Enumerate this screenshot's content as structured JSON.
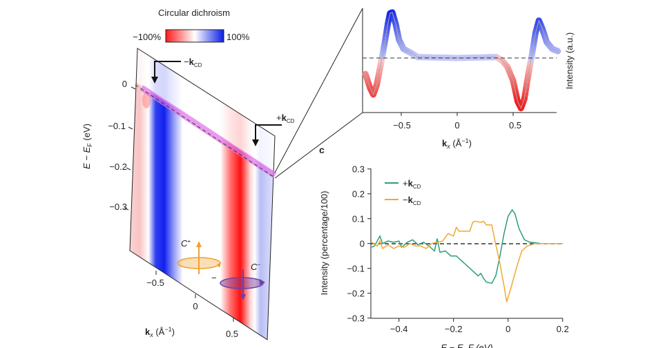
{
  "colorbar": {
    "title": "Circular dichroism",
    "min_label": "−100%",
    "max_label": "100%",
    "colors": [
      "#ff1a1a",
      "#ffffff",
      "#0a1ee6"
    ]
  },
  "panel_c_letter": "c",
  "chart_data": [
    {
      "type": "heatmap",
      "ylabel_main": "E − E",
      "ylabel_sub": "F",
      "ylabel_unit": " (eV)",
      "yticks": [
        "0",
        "−0.1",
        "−0.2",
        "−0.3"
      ],
      "xlabel_main": "k",
      "xlabel_sub": "x",
      "xlabel_unit": " (Å",
      "xlabel_exp": "−1",
      "xlabel_close": ")",
      "xticks": [
        "−0.5",
        "0",
        "0.5"
      ],
      "annotations": {
        "minus_k": {
          "sign": "−",
          "k": "k",
          "sub": "CD"
        },
        "plus_k": {
          "sign": "+",
          "k": "k",
          "sub": "CD"
        },
        "c_plus": {
          "c": "C",
          "sup": "+"
        },
        "c_minus": {
          "c": "C",
          "sup": "−"
        },
        "minus_mark": "−"
      },
      "colors": {
        "band_highlight": "#e070e8",
        "c_plus": "#f0a030",
        "c_minus": "#7040a0"
      }
    },
    {
      "type": "line",
      "ylabel": "Intensity (a.u.)",
      "xlabel_main": "k",
      "xlabel_sub": "x",
      "xlabel_unit": " (Å",
      "xlabel_exp": "−1",
      "xlabel_close": ")",
      "xticks": [
        "−0.5",
        "0",
        "0.5"
      ],
      "xlim": [
        -0.85,
        0.9
      ],
      "points": [
        [
          -0.9,
          -0.15
        ],
        [
          -0.82,
          -0.35
        ],
        [
          -0.78,
          -0.65
        ],
        [
          -0.75,
          -0.8
        ],
        [
          -0.72,
          -0.6
        ],
        [
          -0.68,
          -0.1
        ],
        [
          -0.65,
          0.3
        ],
        [
          -0.62,
          0.75
        ],
        [
          -0.6,
          0.98
        ],
        [
          -0.58,
          1.0
        ],
        [
          -0.55,
          0.75
        ],
        [
          -0.52,
          0.4
        ],
        [
          -0.48,
          0.2
        ],
        [
          -0.42,
          0.12
        ],
        [
          -0.35,
          0.02
        ],
        [
          0,
          0
        ],
        [
          0.35,
          0.02
        ],
        [
          0.4,
          -0.05
        ],
        [
          0.45,
          -0.2
        ],
        [
          0.5,
          -0.5
        ],
        [
          0.54,
          -0.95
        ],
        [
          0.57,
          -1.1
        ],
        [
          0.6,
          -0.9
        ],
        [
          0.64,
          -0.3
        ],
        [
          0.67,
          0.1
        ],
        [
          0.7,
          0.55
        ],
        [
          0.73,
          0.82
        ],
        [
          0.76,
          0.65
        ],
        [
          0.8,
          0.35
        ],
        [
          0.85,
          0.2
        ],
        [
          0.9,
          0.15
        ]
      ],
      "reference_line": 0
    },
    {
      "type": "line",
      "ylabel": "Intensity (percentage/100)",
      "xlabel": "E − E_F (eV)",
      "xlim": [
        -0.5,
        0.2
      ],
      "ylim": [
        -0.3,
        0.3
      ],
      "xticks": [
        "−0.4",
        "−0.2",
        "0",
        "0.2"
      ],
      "yticks": [
        "0.3",
        "0.2",
        "0.1",
        "0",
        "−0.1",
        "−0.2",
        "−0.3"
      ],
      "legend_position": "top-left",
      "series": [
        {
          "name": "+k_CD",
          "sign": "+",
          "k": "k",
          "sub": "CD",
          "color": "#2a9d78",
          "points": [
            [
              -0.5,
              -0.015
            ],
            [
              -0.49,
              -0.01
            ],
            [
              -0.47,
              0.03
            ],
            [
              -0.46,
              0
            ],
            [
              -0.44,
              0.01
            ],
            [
              -0.42,
              0.005
            ],
            [
              -0.4,
              0.01
            ],
            [
              -0.39,
              -0.015
            ],
            [
              -0.37,
              0.005
            ],
            [
              -0.35,
              0.015
            ],
            [
              -0.33,
              -0.005
            ],
            [
              -0.31,
              0.005
            ],
            [
              -0.29,
              -0.01
            ],
            [
              -0.27,
              -0.03
            ],
            [
              -0.26,
              0.02
            ],
            [
              -0.25,
              -0.035
            ],
            [
              -0.23,
              -0.03
            ],
            [
              -0.21,
              -0.05
            ],
            [
              -0.19,
              -0.05
            ],
            [
              -0.17,
              -0.07
            ],
            [
              -0.15,
              -0.09
            ],
            [
              -0.13,
              -0.11
            ],
            [
              -0.11,
              -0.13
            ],
            [
              -0.1,
              -0.12
            ],
            [
              -0.09,
              -0.14
            ],
            [
              -0.08,
              -0.155
            ],
            [
              -0.06,
              -0.16
            ],
            [
              -0.045,
              -0.13
            ],
            [
              -0.03,
              -0.05
            ],
            [
              -0.015,
              0.04
            ],
            [
              0,
              0.11
            ],
            [
              0.015,
              0.135
            ],
            [
              0.025,
              0.12
            ],
            [
              0.04,
              0.06
            ],
            [
              0.06,
              0.015
            ],
            [
              0.08,
              0.005
            ],
            [
              0.1,
              0.003
            ],
            [
              0.12,
              0
            ],
            [
              0.2,
              0
            ]
          ]
        },
        {
          "name": "−k_CD",
          "sign": "−",
          "k": "k",
          "sub": "CD",
          "color": "#f0a830",
          "points": [
            [
              -0.5,
              0.005
            ],
            [
              -0.48,
              -0.01
            ],
            [
              -0.47,
              0.01
            ],
            [
              -0.46,
              -0.02
            ],
            [
              -0.44,
              -0.005
            ],
            [
              -0.42,
              -0.02
            ],
            [
              -0.4,
              -0.01
            ],
            [
              -0.38,
              -0.015
            ],
            [
              -0.36,
              0
            ],
            [
              -0.34,
              -0.01
            ],
            [
              -0.32,
              -0.01
            ],
            [
              -0.3,
              -0.02
            ],
            [
              -0.28,
              0
            ],
            [
              -0.26,
              0.005
            ],
            [
              -0.24,
              0.01
            ],
            [
              -0.22,
              0.04
            ],
            [
              -0.2,
              0.03
            ],
            [
              -0.19,
              0.065
            ],
            [
              -0.18,
              0.05
            ],
            [
              -0.16,
              0.05
            ],
            [
              -0.14,
              0.05
            ],
            [
              -0.13,
              0.085
            ],
            [
              -0.12,
              0.09
            ],
            [
              -0.1,
              0.085
            ],
            [
              -0.09,
              0.09
            ],
            [
              -0.08,
              0.075
            ],
            [
              -0.06,
              0.075
            ],
            [
              -0.05,
              0.02
            ],
            [
              -0.03,
              -0.08
            ],
            [
              -0.015,
              -0.17
            ],
            [
              -0.005,
              -0.235
            ],
            [
              0.01,
              -0.18
            ],
            [
              0.03,
              -0.1
            ],
            [
              0.05,
              -0.03
            ],
            [
              0.07,
              -0.01
            ],
            [
              0.1,
              0
            ],
            [
              0.2,
              0
            ]
          ]
        }
      ],
      "reference_line": 0
    }
  ]
}
